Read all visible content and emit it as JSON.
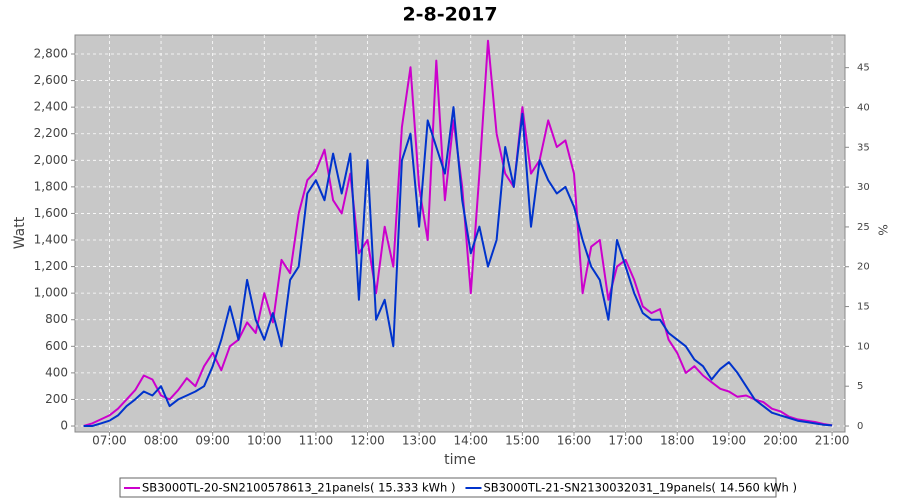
{
  "chart_data": {
    "type": "line",
    "title": "2-8-2017",
    "xlabel": "time",
    "ylabel": "Watt",
    "y2label": "%",
    "x": [
      "06:30",
      "06:40",
      "06:50",
      "07:00",
      "07:10",
      "07:20",
      "07:30",
      "07:40",
      "07:50",
      "08:00",
      "08:10",
      "08:20",
      "08:30",
      "08:40",
      "08:50",
      "09:00",
      "09:10",
      "09:20",
      "09:30",
      "09:40",
      "09:50",
      "10:00",
      "10:10",
      "10:20",
      "10:30",
      "10:40",
      "10:50",
      "11:00",
      "11:10",
      "11:20",
      "11:30",
      "11:40",
      "11:50",
      "12:00",
      "12:10",
      "12:20",
      "12:30",
      "12:40",
      "12:50",
      "13:00",
      "13:10",
      "13:20",
      "13:30",
      "13:40",
      "13:50",
      "14:00",
      "14:10",
      "14:20",
      "14:30",
      "14:40",
      "14:50",
      "15:00",
      "15:10",
      "15:20",
      "15:30",
      "15:40",
      "15:50",
      "16:00",
      "16:10",
      "16:20",
      "16:30",
      "16:40",
      "16:50",
      "17:00",
      "17:10",
      "17:20",
      "17:30",
      "17:40",
      "17:50",
      "18:00",
      "18:10",
      "18:20",
      "18:30",
      "18:40",
      "18:50",
      "19:00",
      "19:10",
      "19:20",
      "19:30",
      "19:40",
      "19:50",
      "20:00",
      "20:10",
      "20:20",
      "20:30",
      "20:40",
      "20:50",
      "21:00"
    ],
    "series": [
      {
        "name": "SB3000TL-20-SN2100578613_21panels( 15.333 kWh )",
        "color": "#cc00cc",
        "values": [
          0,
          20,
          50,
          80,
          130,
          200,
          270,
          380,
          350,
          230,
          200,
          270,
          360,
          300,
          450,
          550,
          420,
          600,
          650,
          780,
          700,
          1000,
          780,
          1250,
          1150,
          1600,
          1850,
          1920,
          2080,
          1700,
          1600,
          1900,
          1300,
          1400,
          1000,
          1500,
          1200,
          2250,
          2700,
          1800,
          1400,
          2750,
          1700,
          2300,
          1800,
          1000,
          1900,
          2900,
          2200,
          1900,
          1800,
          2400,
          1900,
          2000,
          2300,
          2100,
          2150,
          1900,
          1000,
          1350,
          1400,
          950,
          1200,
          1250,
          1100,
          900,
          850,
          880,
          650,
          550,
          400,
          450,
          380,
          330,
          280,
          260,
          220,
          230,
          200,
          180,
          130,
          110,
          70,
          50,
          40,
          30,
          15,
          5
        ]
      },
      {
        "name": "SB3000TL-21-SN2130032031_19panels( 14.560 kWh )",
        "color": "#0033cc",
        "values": [
          0,
          0,
          20,
          40,
          80,
          150,
          200,
          260,
          230,
          300,
          150,
          200,
          230,
          260,
          300,
          450,
          650,
          900,
          650,
          1100,
          800,
          650,
          850,
          600,
          1100,
          1200,
          1750,
          1850,
          1700,
          2050,
          1750,
          2050,
          950,
          2000,
          800,
          950,
          600,
          2000,
          2200,
          1500,
          2300,
          2100,
          1900,
          2400,
          1700,
          1300,
          1500,
          1200,
          1400,
          2100,
          1800,
          2350,
          1500,
          2000,
          1850,
          1750,
          1800,
          1650,
          1400,
          1200,
          1100,
          800,
          1400,
          1200,
          1000,
          850,
          800,
          800,
          700,
          650,
          600,
          500,
          450,
          350,
          430,
          480,
          400,
          300,
          200,
          150,
          100,
          80,
          60,
          40,
          30,
          20,
          10,
          5
        ]
      }
    ],
    "xlim": [
      "06:20",
      "21:15"
    ],
    "xticks": [
      "07:00",
      "08:00",
      "09:00",
      "10:00",
      "11:00",
      "12:00",
      "13:00",
      "14:00",
      "15:00",
      "16:00",
      "17:00",
      "18:00",
      "19:00",
      "20:00",
      "21:00"
    ],
    "ylim": [
      -45,
      2943
    ],
    "yticks": [
      0,
      200,
      400,
      600,
      800,
      {
        "value": 1000,
        "label": "1,000"
      },
      {
        "value": 1200,
        "label": "1,200"
      },
      {
        "value": 1400,
        "label": "1,400"
      },
      {
        "value": 1600,
        "label": "1,600"
      },
      {
        "value": 1800,
        "label": "1,800"
      },
      {
        "value": 2000,
        "label": "2,000"
      },
      {
        "value": 2200,
        "label": "2,200"
      },
      {
        "value": 2400,
        "label": "2,400"
      },
      {
        "value": 2600,
        "label": "2,600"
      },
      {
        "value": 2800,
        "label": "2,800"
      }
    ],
    "y2lim": [
      -0.75,
      49.1
    ],
    "y2ticks": [
      0,
      5,
      10,
      15,
      20,
      25,
      30,
      35,
      40,
      45
    ],
    "grid": true,
    "background": "#c8c8c8",
    "legend": "bottom"
  }
}
